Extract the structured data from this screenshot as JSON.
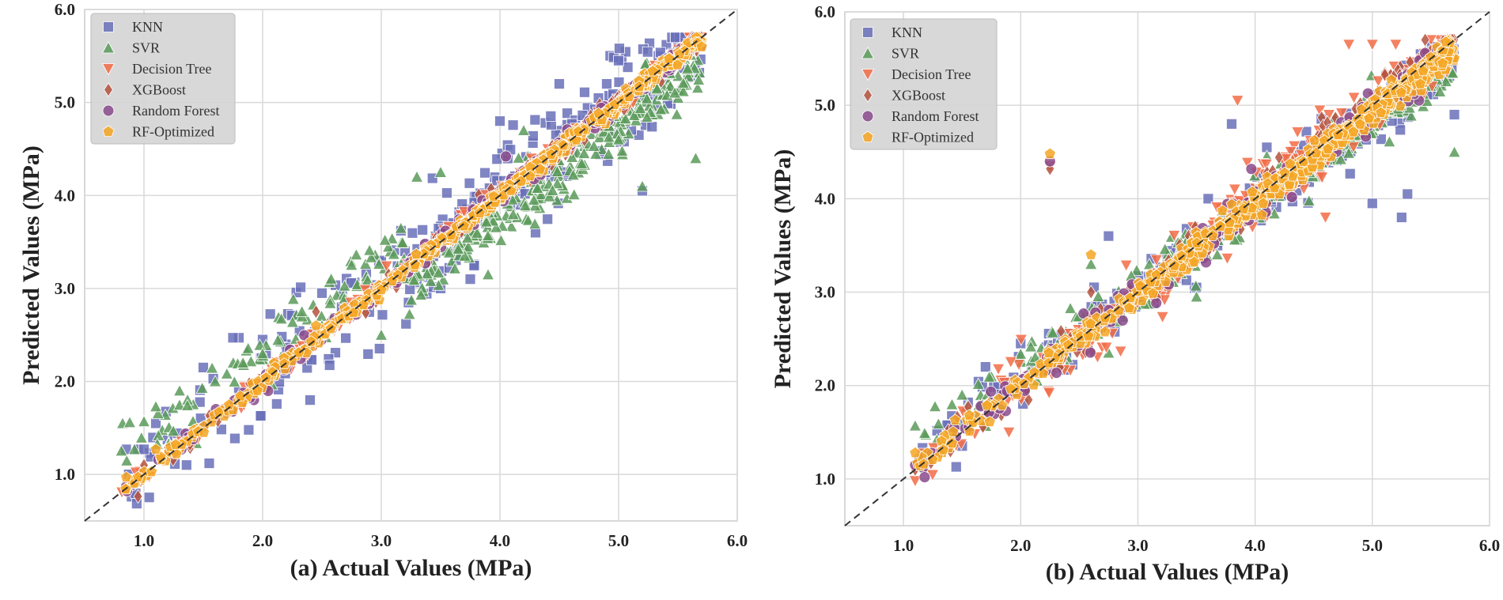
{
  "figure_caption_note": "",
  "colors": {
    "KNN": "#6a70b8",
    "SVR": "#5a9a5a",
    "Decision Tree": "#f26b45",
    "XGBoost": "#b5523e",
    "Random Forest": "#8a4a8c",
    "RF-Optimized": "#f5a623",
    "grid": "#d9d9d9",
    "diagonal": "#333333",
    "legend_bg": "#d5d5d5"
  },
  "chart_data": [
    {
      "type": "scatter",
      "panel": "a",
      "xlabel": "(a) Actual Values (MPa)",
      "ylabel": "Predicted Values (MPa)",
      "xlim": [
        0.5,
        6.0
      ],
      "ylim": [
        0.5,
        6.0
      ],
      "xticks": [
        "1.0",
        "2.0",
        "3.0",
        "4.0",
        "5.0",
        "6.0"
      ],
      "yticks": [
        "1.0",
        "2.0",
        "3.0",
        "4.0",
        "5.0",
        "6.0"
      ],
      "grid": true,
      "legend_position": "top-left",
      "diagonal": "y = x (dashed)",
      "series": [
        {
          "name": "KNN",
          "marker": "square",
          "x_range": [
            0.8,
            5.7
          ],
          "slope": 1.0,
          "offset": 0.05,
          "spread": 0.28,
          "points": [
            [
              0.85,
              1.27
            ],
            [
              0.95,
              1.27
            ],
            [
              1.0,
              1.27
            ],
            [
              1.1,
              1.55
            ],
            [
              1.5,
              2.15
            ],
            [
              1.55,
              1.12
            ],
            [
              1.8,
              2.47
            ],
            [
              1.75,
              2.47
            ],
            [
              2.0,
              2.45
            ],
            [
              2.4,
              1.8
            ],
            [
              2.5,
              2.95
            ],
            [
              3.0,
              3.3
            ],
            [
              3.2,
              3.4
            ],
            [
              3.5,
              3.0
            ],
            [
              3.75,
              3.1
            ],
            [
              4.0,
              4.8
            ],
            [
              4.3,
              3.6
            ],
            [
              4.5,
              5.2
            ],
            [
              4.7,
              4.6
            ],
            [
              4.9,
              5.2
            ],
            [
              5.0,
              5.45
            ],
            [
              5.2,
              4.05
            ],
            [
              5.6,
              5.35
            ]
          ]
        },
        {
          "name": "SVR",
          "marker": "triangle-up",
          "x_range": [
            0.8,
            5.7
          ],
          "slope": 0.93,
          "offset": 0.4,
          "spread": 0.22,
          "points": [
            [
              0.82,
              1.55
            ],
            [
              0.88,
              1.56
            ],
            [
              1.0,
              1.57
            ],
            [
              1.1,
              1.73
            ],
            [
              1.3,
              1.9
            ],
            [
              1.6,
              2.0
            ],
            [
              2.0,
              2.3
            ],
            [
              2.5,
              2.6
            ],
            [
              3.0,
              2.5
            ],
            [
              3.3,
              4.2
            ],
            [
              3.5,
              4.25
            ],
            [
              3.9,
              3.15
            ],
            [
              4.2,
              4.7
            ],
            [
              4.6,
              4.6
            ],
            [
              5.0,
              4.6
            ],
            [
              5.2,
              4.1
            ],
            [
              5.65,
              4.4
            ]
          ]
        },
        {
          "name": "Decision Tree",
          "marker": "triangle-down",
          "x_range": [
            0.8,
            5.7
          ],
          "slope": 1.0,
          "offset": 0.0,
          "spread": 0.08,
          "points": [
            [
              1.0,
              0.95
            ],
            [
              5.7,
              5.7
            ]
          ]
        },
        {
          "name": "XGBoost",
          "marker": "diamond",
          "x_range": [
            0.8,
            5.7
          ],
          "slope": 1.0,
          "offset": 0.0,
          "spread": 0.08,
          "points": [
            [
              1.0,
              1.1
            ],
            [
              2.45,
              2.75
            ],
            [
              5.7,
              5.65
            ]
          ]
        },
        {
          "name": "Random Forest",
          "marker": "circle",
          "x_range": [
            0.8,
            5.7
          ],
          "slope": 1.0,
          "offset": 0.0,
          "spread": 0.07,
          "points": [
            [
              0.85,
              0.87
            ],
            [
              0.9,
              0.9
            ],
            [
              4.05,
              4.42
            ],
            [
              5.7,
              5.6
            ]
          ]
        },
        {
          "name": "RF-Optimized",
          "marker": "pentagon",
          "x_range": [
            0.8,
            5.7
          ],
          "slope": 1.0,
          "offset": 0.0,
          "spread": 0.05,
          "points": [
            [
              0.85,
              0.97
            ],
            [
              0.95,
              0.97
            ],
            [
              1.1,
              1.27
            ],
            [
              2.45,
              2.6
            ],
            [
              5.7,
              5.6
            ]
          ]
        }
      ]
    },
    {
      "type": "scatter",
      "panel": "b",
      "xlabel": "(b) Actual Values (MPa)",
      "ylabel": "Predicted Values (MPa)",
      "xlim": [
        0.5,
        6.0
      ],
      "ylim": [
        0.5,
        6.0
      ],
      "xticks": [
        "1.0",
        "2.0",
        "3.0",
        "4.0",
        "5.0",
        "6.0"
      ],
      "yticks": [
        "1.0",
        "2.0",
        "3.0",
        "4.0",
        "5.0",
        "6.0"
      ],
      "grid": true,
      "legend_position": "top-left",
      "diagonal": "y = x (dashed)",
      "series": [
        {
          "name": "KNN",
          "marker": "square",
          "x_range": [
            1.1,
            5.7
          ],
          "slope": 0.92,
          "offset": 0.25,
          "spread": 0.22,
          "points": [
            [
              1.45,
              1.13
            ],
            [
              1.7,
              2.2
            ],
            [
              2.0,
              2.45
            ],
            [
              2.55,
              2.75
            ],
            [
              2.75,
              3.6
            ],
            [
              3.5,
              3.05
            ],
            [
              3.6,
              4.0
            ],
            [
              3.8,
              4.8
            ],
            [
              4.1,
              4.55
            ],
            [
              5.0,
              3.95
            ],
            [
              5.25,
              3.8
            ],
            [
              5.3,
              4.05
            ],
            [
              5.7,
              4.9
            ]
          ]
        },
        {
          "name": "SVR",
          "marker": "triangle-up",
          "x_range": [
            1.1,
            5.7
          ],
          "slope": 0.9,
          "offset": 0.35,
          "spread": 0.18,
          "points": [
            [
              1.1,
              1.57
            ],
            [
              1.5,
              1.9
            ],
            [
              2.6,
              3.3
            ],
            [
              2.75,
              2.35
            ],
            [
              3.5,
              2.95
            ],
            [
              5.7,
              4.5
            ]
          ]
        },
        {
          "name": "Decision Tree",
          "marker": "triangle-down",
          "x_range": [
            1.1,
            5.7
          ],
          "slope": 1.0,
          "offset": 0.0,
          "spread": 0.25,
          "points": [
            [
              1.1,
              0.98
            ],
            [
              1.9,
              1.5
            ],
            [
              2.25,
              4.35
            ],
            [
              3.85,
              5.05
            ],
            [
              4.8,
              5.65
            ],
            [
              5.0,
              5.65
            ],
            [
              5.2,
              5.65
            ],
            [
              5.5,
              5.7
            ],
            [
              5.6,
              5.65
            ],
            [
              4.6,
              3.8
            ]
          ]
        },
        {
          "name": "XGBoost",
          "marker": "diamond",
          "x_range": [
            1.1,
            5.7
          ],
          "slope": 1.0,
          "offset": 0.0,
          "spread": 0.15,
          "points": [
            [
              1.1,
              1.1
            ],
            [
              2.25,
              4.32
            ],
            [
              5.6,
              5.5
            ],
            [
              2.6,
              3.0
            ]
          ]
        },
        {
          "name": "Random Forest",
          "marker": "circle",
          "x_range": [
            1.1,
            5.7
          ],
          "slope": 0.97,
          "offset": 0.08,
          "spread": 0.13,
          "points": [
            [
              1.1,
              1.15
            ],
            [
              2.25,
              4.4
            ],
            [
              5.55,
              5.6
            ]
          ]
        },
        {
          "name": "RF-Optimized",
          "marker": "pentagon",
          "x_range": [
            1.1,
            5.7
          ],
          "slope": 0.97,
          "offset": 0.08,
          "spread": 0.1,
          "points": [
            [
              1.1,
              1.28
            ],
            [
              2.25,
              4.48
            ],
            [
              5.6,
              5.45
            ],
            [
              2.6,
              3.4
            ]
          ]
        }
      ]
    }
  ]
}
